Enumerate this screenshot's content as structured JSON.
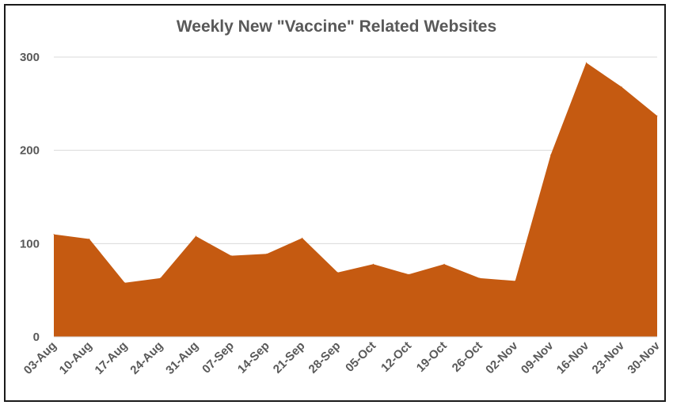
{
  "chart_data": {
    "type": "area",
    "title": "Weekly New \"Vaccine\" Related Websites",
    "xlabel": "",
    "ylabel": "",
    "categories": [
      "03-Aug",
      "10-Aug",
      "17-Aug",
      "24-Aug",
      "31-Aug",
      "07-Sep",
      "14-Sep",
      "21-Sep",
      "28-Sep",
      "05-Oct",
      "12-Oct",
      "19-Oct",
      "26-Oct",
      "02-Nov",
      "09-Nov",
      "16-Nov",
      "23-Nov",
      "30-Nov"
    ],
    "values": [
      110,
      105,
      58,
      63,
      108,
      87,
      89,
      106,
      69,
      78,
      67,
      78,
      63,
      60,
      195,
      294,
      268,
      237
    ],
    "yticks": [
      0,
      100,
      200,
      300
    ],
    "ylim": [
      0,
      300
    ],
    "grid": true,
    "fill_color": "#C55A11"
  }
}
